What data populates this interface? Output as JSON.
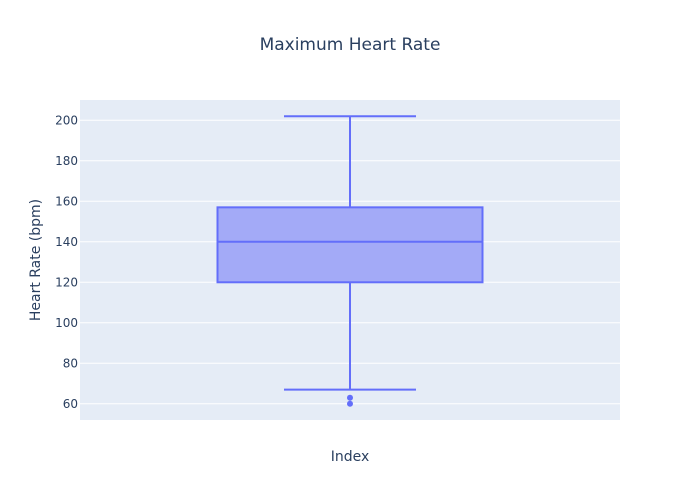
{
  "chart_data": {
    "type": "box",
    "title": "Maximum Heart Rate",
    "xlabel": "Index",
    "ylabel": "Heart Rate (bpm)",
    "ylim": [
      52,
      210
    ],
    "yticks": [
      60,
      80,
      100,
      120,
      140,
      160,
      180,
      200
    ],
    "series": [
      {
        "name": "Maximum Heart Rate",
        "min": 67,
        "q1": 120,
        "median": 140,
        "q3": 157,
        "max": 202,
        "outliers": [
          60,
          63
        ]
      }
    ],
    "colors": {
      "background": "#ffffff",
      "plot_bg": "#e5ecf6",
      "grid": "#ffffff",
      "box_line": "#636efa",
      "box_fill": "#a3aaf7",
      "text": "#2a3f5f"
    }
  }
}
